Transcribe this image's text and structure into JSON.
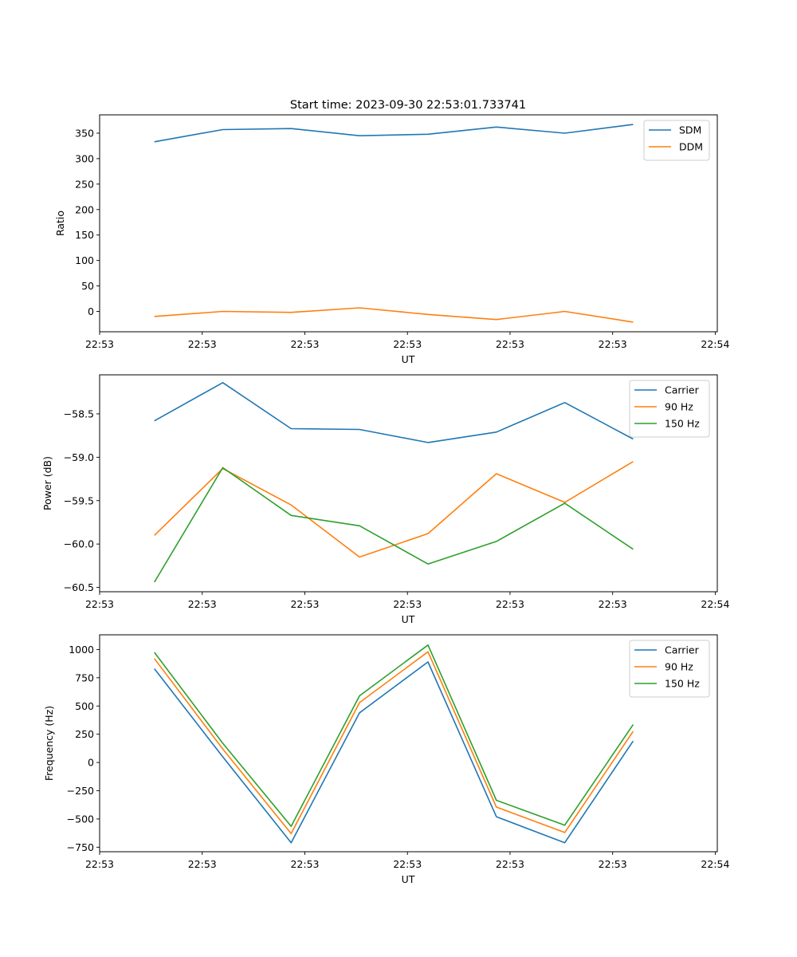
{
  "figure": {
    "title": "Start time: 2023-09-30 22:53:01.733741"
  },
  "chart_data": [
    {
      "type": "line",
      "title": "Start time: 2023-09-30 22:53:01.733741",
      "xlabel": "UT",
      "ylabel": "Ratio",
      "x": [
        1,
        2,
        3,
        4,
        5,
        6,
        7,
        8
      ],
      "xlim": [
        0.2,
        9.23
      ],
      "x_ticks": [
        0.2,
        1.7,
        3.2,
        4.7,
        6.2,
        7.7,
        9.2
      ],
      "x_tick_labels": [
        "22:53",
        "22:53",
        "22:53",
        "22:53",
        "22:53",
        "22:53",
        "22:54"
      ],
      "ylim": [
        -40,
        386
      ],
      "y_ticks": [
        0,
        50,
        100,
        150,
        200,
        250,
        300,
        350
      ],
      "y_tick_labels": [
        "0",
        "50",
        "100",
        "150",
        "200",
        "250",
        "300",
        "350"
      ],
      "legend": "top-right",
      "series": [
        {
          "name": "SDM",
          "color": "#1f77b4",
          "values": [
            333,
            357,
            359,
            345,
            348,
            362,
            350,
            367
          ]
        },
        {
          "name": "DDM",
          "color": "#ff7f0e",
          "values": [
            -10,
            0,
            -2,
            7,
            -6,
            -16,
            0,
            -21
          ]
        }
      ]
    },
    {
      "type": "line",
      "title": "",
      "xlabel": "UT",
      "ylabel": "Power (dB)",
      "x": [
        1,
        2,
        3,
        4,
        5,
        6,
        7,
        8
      ],
      "xlim": [
        0.2,
        9.23
      ],
      "x_ticks": [
        0.2,
        1.7,
        3.2,
        4.7,
        6.2,
        7.7,
        9.2
      ],
      "x_tick_labels": [
        "22:53",
        "22:53",
        "22:53",
        "22:53",
        "22:53",
        "22:53",
        "22:54"
      ],
      "ylim": [
        -60.55,
        -58.05
      ],
      "y_ticks": [
        -60.5,
        -60.0,
        -59.5,
        -59.0,
        -58.5
      ],
      "y_tick_labels": [
        "−60.5",
        "−60.0",
        "−59.5",
        "−59.0",
        "−58.5"
      ],
      "legend": "top-right",
      "series": [
        {
          "name": "Carrier",
          "color": "#1f77b4",
          "values": [
            -58.58,
            -58.14,
            -58.67,
            -58.68,
            -58.83,
            -58.71,
            -58.37,
            -58.79
          ]
        },
        {
          "name": "90 Hz",
          "color": "#ff7f0e",
          "values": [
            -59.9,
            -59.13,
            -59.55,
            -60.15,
            -59.88,
            -59.19,
            -59.52,
            -59.05
          ]
        },
        {
          "name": "150 Hz",
          "color": "#2ca02c",
          "values": [
            -60.44,
            -59.12,
            -59.67,
            -59.79,
            -60.23,
            -59.97,
            -59.53,
            -60.06
          ]
        }
      ]
    },
    {
      "type": "line",
      "title": "",
      "xlabel": "UT",
      "ylabel": "Frequency (Hz)",
      "x": [
        1,
        2,
        3,
        4,
        5,
        6,
        7,
        8
      ],
      "xlim": [
        0.2,
        9.23
      ],
      "x_ticks": [
        0.2,
        1.7,
        3.2,
        4.7,
        6.2,
        7.7,
        9.2
      ],
      "x_tick_labels": [
        "22:53",
        "22:53",
        "22:53",
        "22:53",
        "22:53",
        "22:53",
        "22:54"
      ],
      "ylim": [
        -790,
        1130
      ],
      "y_ticks": [
        -750,
        -500,
        -250,
        0,
        250,
        500,
        750,
        1000
      ],
      "y_tick_labels": [
        "−750",
        "−500",
        "−250",
        "0",
        "250",
        "500",
        "750",
        "1000"
      ],
      "legend": "top-right",
      "series": [
        {
          "name": "Carrier",
          "color": "#1f77b4",
          "values": [
            830,
            50,
            -710,
            440,
            890,
            -480,
            -710,
            190
          ]
        },
        {
          "name": "90 Hz",
          "color": "#ff7f0e",
          "values": [
            920,
            120,
            -630,
            530,
            980,
            -395,
            -620,
            275
          ]
        },
        {
          "name": "150 Hz",
          "color": "#2ca02c",
          "values": [
            975,
            170,
            -565,
            590,
            1040,
            -335,
            -555,
            335
          ]
        }
      ]
    }
  ]
}
